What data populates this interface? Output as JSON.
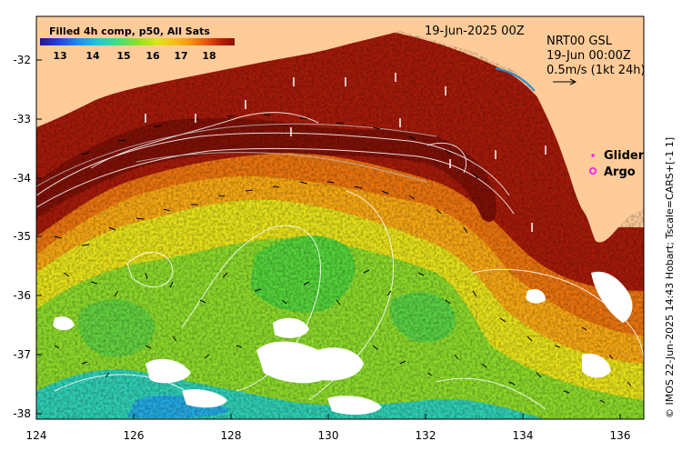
{
  "map": {
    "title_left": "Filled 4h comp, p50, All Sats",
    "title_date": "19-Jun-2025 00Z",
    "product_label": "NRT00 GSL",
    "product_time": "19-Jun 00:00Z",
    "scale_label": "0.5m/s (1kt 24h)",
    "credit": "© IMOS 22-Jun-2025 14:43 Hobart; Tscale=CARS+[-1 1]",
    "legend": [
      {
        "label": "Glider",
        "symbol": "dot",
        "color": "#ff00ff"
      },
      {
        "label": "Argo",
        "symbol": "circle",
        "color": "#ff00ff"
      }
    ],
    "colorbar": {
      "ticks": [
        "13",
        "14",
        "15",
        "16",
        "17",
        "18"
      ],
      "colors": [
        "#2b1495",
        "#1f3ee0",
        "#1d8ef2",
        "#20c9d8",
        "#3ee080",
        "#8ee023",
        "#d8e618",
        "#f6c418",
        "#f59a10",
        "#e8590c",
        "#bd1d09",
        "#8a0f06"
      ]
    },
    "x_ticks": [
      "124",
      "126",
      "128",
      "130",
      "132",
      "134",
      "136"
    ],
    "y_ticks": [
      "-32",
      "-33",
      "-34",
      "-35",
      "-36",
      "-37",
      "-38"
    ],
    "land_color": "#ffcc99"
  }
}
